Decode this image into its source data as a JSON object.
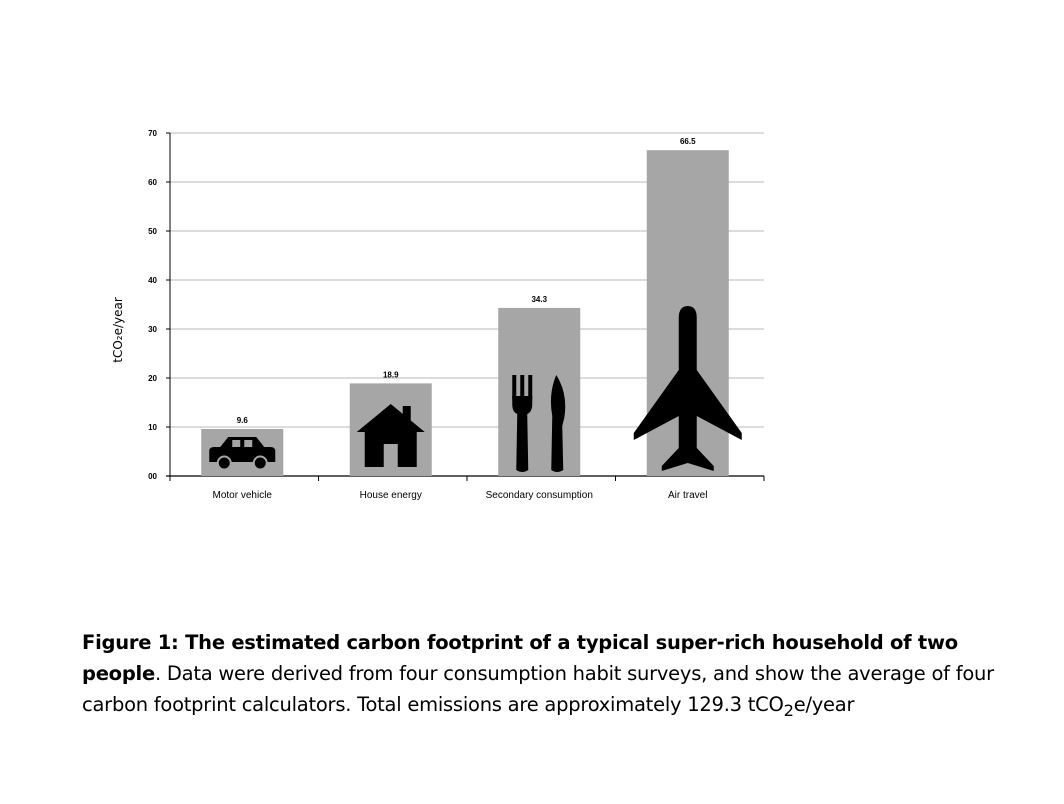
{
  "chart_data": {
    "type": "bar",
    "categories": [
      "Motor vehicle",
      "House energy",
      "Secondary consumption",
      "Air travel"
    ],
    "values": [
      9.6,
      18.9,
      34.3,
      66.5
    ],
    "value_labels": [
      "9.6",
      "18.9",
      "34.3",
      "66.5"
    ],
    "icons": [
      "car-icon",
      "house-icon",
      "fork-knife-icon",
      "airplane-icon"
    ],
    "yticks": [
      0,
      10,
      20,
      30,
      40,
      50,
      60,
      70
    ],
    "ytick_labels": [
      "00",
      "10",
      "20",
      "30",
      "40",
      "50",
      "60",
      "70"
    ],
    "ylim": [
      0,
      70
    ],
    "ylabel": "tCO₂e/year",
    "grid": true,
    "bar_color": "#a6a6a6",
    "icon_color": "#000000"
  },
  "caption": {
    "bold": "Figure 1: The estimated carbon footprint of a typical super-rich household of two people",
    "text": ". Data were derived from four consumption habit surveys, and show the average of four carbon footprint calculators. Total emissions are approximately 129.3 tCO",
    "sub": "2",
    "tail": "e/year"
  }
}
